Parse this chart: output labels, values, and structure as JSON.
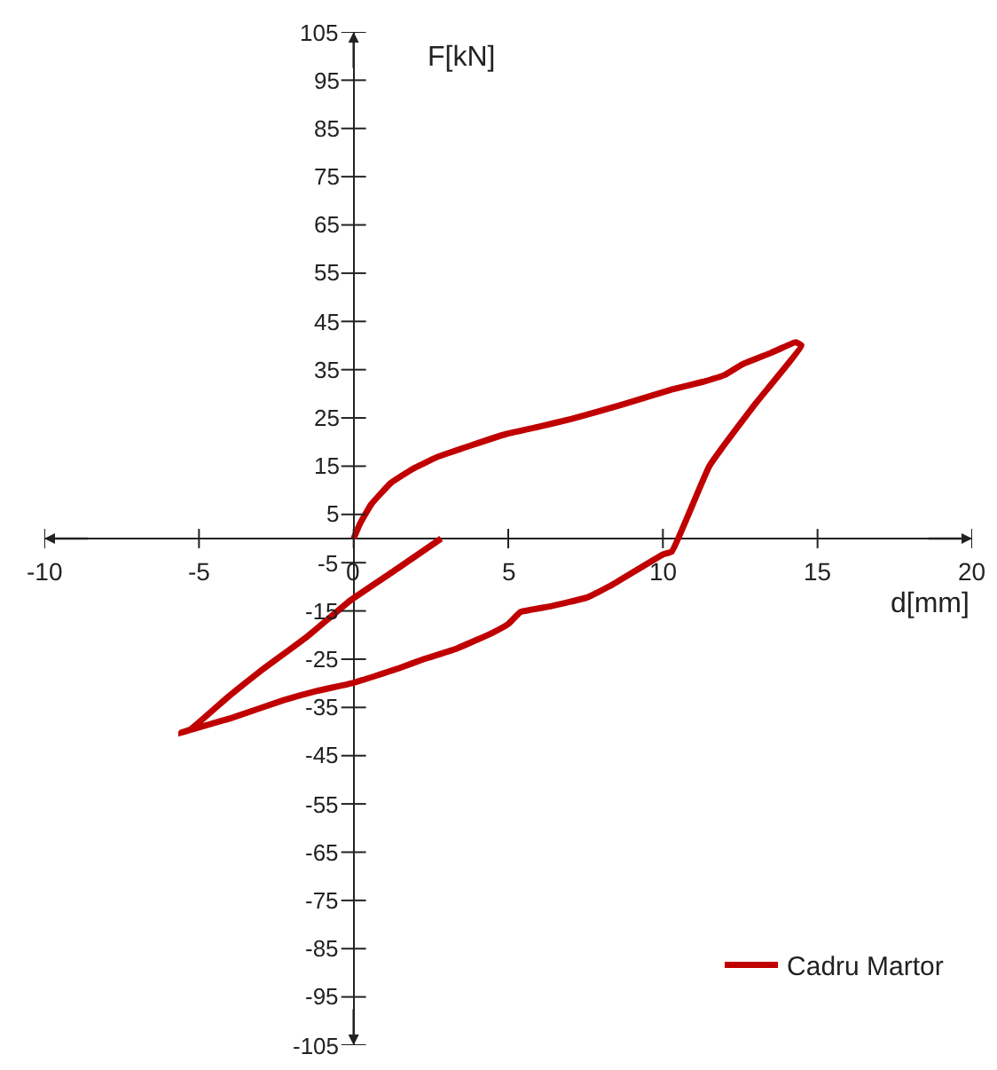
{
  "chart_data": {
    "type": "line",
    "xlabel": "d[mm]",
    "ylabel": "F[kN]",
    "series": [
      {
        "name": "Cadru Martor",
        "color": "#c00000",
        "x": [
          0,
          0.2,
          0.57,
          1.2,
          1.9,
          2.67,
          3.8,
          4.95,
          6.0,
          7.05,
          8.7,
          10.3,
          11.3,
          12.0,
          12.57,
          13.5,
          14.29,
          14.48,
          13.0,
          11.5,
          10.29,
          10.0,
          8.3,
          7.55,
          6.4,
          5.4,
          5.0,
          4.5,
          3.3,
          2.26,
          1.5,
          0,
          -1.2,
          -2.26,
          -3.96,
          -5.57,
          -5.28,
          -4.0,
          -3.0,
          -1.5,
          -0.1,
          1.4,
          2.83
        ],
        "values": [
          0,
          3,
          7.1,
          11.5,
          14.4,
          16.8,
          19.3,
          21.7,
          23.2,
          24.8,
          27.8,
          30.9,
          32.5,
          33.9,
          36.1,
          38.5,
          40.7,
          40.0,
          28,
          15,
          -2.7,
          -3.3,
          -9.8,
          -12.2,
          -14.0,
          -15.2,
          -17.7,
          -19.5,
          -22.9,
          -25,
          -26.8,
          -29.9,
          -31.6,
          -33.5,
          -37.2,
          -40.2,
          -39.6,
          -32.5,
          -27.4,
          -20.3,
          -12.8,
          -6.3,
          0
        ]
      }
    ],
    "xlim": [
      -10,
      20
    ],
    "xticks": [
      -10,
      -5,
      0,
      5,
      10,
      15,
      20
    ],
    "ylim": [
      -105,
      105
    ],
    "yticks": [
      -105,
      -95,
      -85,
      -75,
      -65,
      -55,
      -45,
      -35,
      -25,
      -15,
      -5,
      5,
      15,
      25,
      35,
      45,
      55,
      65,
      75,
      85,
      95,
      105
    ],
    "legend": "bottom right",
    "marker": "none",
    "line_style": "solid"
  }
}
